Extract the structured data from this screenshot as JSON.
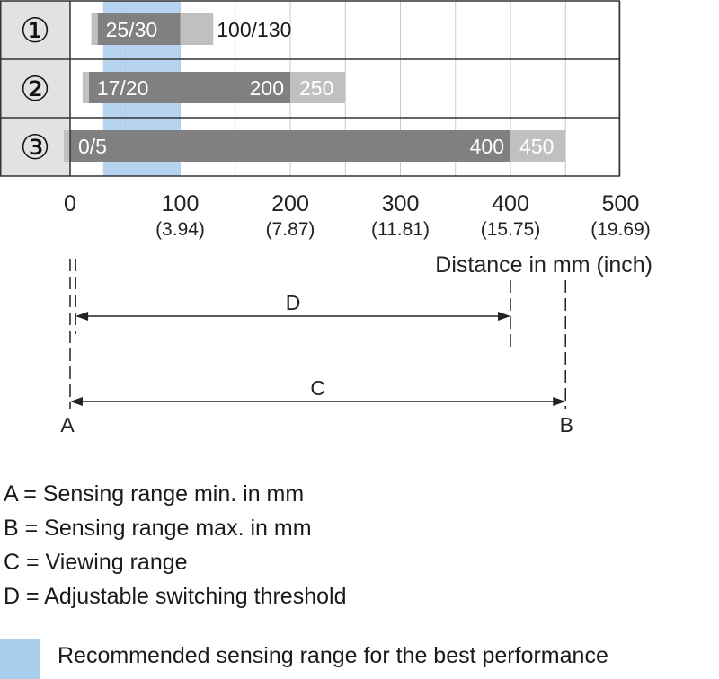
{
  "chart_data": {
    "type": "bar",
    "orientation": "horizontal",
    "x_ticks": [
      {
        "value": 0,
        "label": "0",
        "sub": ""
      },
      {
        "value": 100,
        "label": "100",
        "sub": "(3.94)"
      },
      {
        "value": 200,
        "label": "200",
        "sub": "(7.87)"
      },
      {
        "value": 300,
        "label": "300",
        "sub": "(11.81)"
      },
      {
        "value": 400,
        "label": "400",
        "sub": "(15.75)"
      },
      {
        "value": 500,
        "label": "500",
        "sub": "(19.69)"
      }
    ],
    "xlim": [
      0,
      500
    ],
    "xlabel": "Distance in mm (inch)",
    "grid": true,
    "recommended_range": [
      30,
      100
    ],
    "rows": [
      {
        "id": "①",
        "min_values": [
          25,
          30
        ],
        "threshold": 100,
        "max": 130,
        "min_label": "25/30",
        "threshold_label": "",
        "max_label": "100/130"
      },
      {
        "id": "②",
        "min_values": [
          17,
          20
        ],
        "threshold": 200,
        "max": 250,
        "min_label": "17/20",
        "threshold_label": "200",
        "max_label": "250"
      },
      {
        "id": "③",
        "min_values": [
          0,
          5
        ],
        "threshold": 400,
        "max": 450,
        "min_label": "0/5",
        "threshold_label": "400",
        "max_label": "450"
      }
    ],
    "dimensions": {
      "D_label": "D",
      "C_label": "C",
      "A_label": "A",
      "B_label": "B"
    }
  },
  "legend": {
    "items": [
      "A = Sensing range min. in mm",
      "B = Sensing range max. in mm",
      "C = Viewing range",
      "D = Adjustable switching threshold"
    ],
    "recommended_text": "Recommended sensing range for the best performance"
  },
  "colors": {
    "dark_bar": "#808080",
    "light_bar": "#c0c0c0",
    "recommended": "#a9cdec",
    "row_header": "#e2e2e2",
    "grid": "#c8c8c8"
  }
}
